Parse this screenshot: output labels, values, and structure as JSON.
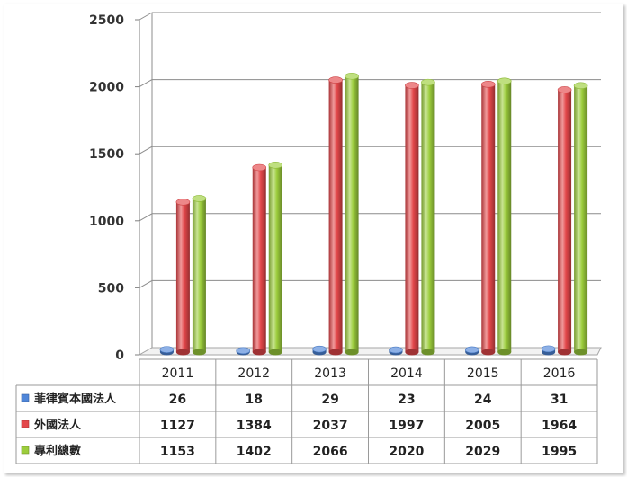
{
  "chart_data": {
    "type": "bar",
    "title": "",
    "xlabel": "",
    "ylabel": "",
    "ylim": [
      0,
      2500
    ],
    "yticks": [
      0,
      500,
      1000,
      1500,
      2000,
      2500
    ],
    "grid": true,
    "legend_position": "table-left",
    "categories": [
      "2011",
      "2012",
      "2013",
      "2014",
      "2015",
      "2016"
    ],
    "series": [
      {
        "name": "菲律賓本國法人",
        "values": [
          26,
          18,
          29,
          23,
          24,
          31
        ],
        "color": "#4f86d9"
      },
      {
        "name": "外國法人",
        "values": [
          1127,
          1384,
          2037,
          1997,
          2005,
          1964
        ],
        "color": "#e3474a"
      },
      {
        "name": "專利總數",
        "values": [
          1153,
          1402,
          2066,
          2020,
          2029,
          1995
        ],
        "color": "#9ccd3c"
      }
    ]
  }
}
